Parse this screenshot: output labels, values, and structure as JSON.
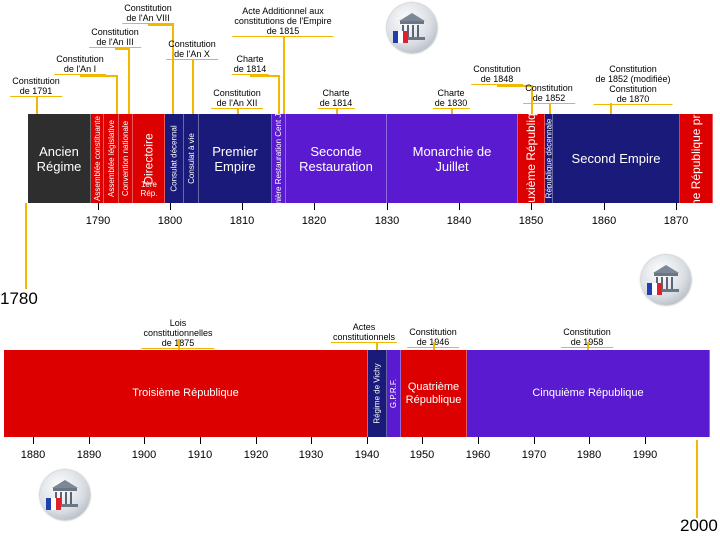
{
  "colors": {
    "ancien": "#2e2e2e",
    "red": "#dd0000",
    "navy": "#1a1a7a",
    "purple": "#5a1ad0",
    "darkred": "#aa0000",
    "annotation_line": "#f2b800"
  },
  "top": {
    "segments": [
      {
        "name": "seg-ancien-regime",
        "label": "Ancien\nRégime",
        "color": "#2e2e2e",
        "vertical": false
      },
      {
        "name": "seg-assemblee-constituante",
        "label": "Assemblée constituante",
        "color": "#dd0000",
        "vertical": true
      },
      {
        "name": "seg-assemblee-legislative",
        "label": "Assemblée législative",
        "color": "#dd0000",
        "vertical": true
      },
      {
        "name": "seg-convention",
        "label": "Convention nationale",
        "color": "#dd0000",
        "vertical": true
      },
      {
        "name": "seg-directoire",
        "label": "Directoire",
        "color": "#dd0000",
        "vertical": true
      },
      {
        "name": "seg-consulat-decennal",
        "label": "Consulat décennal",
        "color": "#1a1a7a",
        "vertical": true
      },
      {
        "name": "seg-consulat-vie",
        "label": "Consulat à vie",
        "color": "#1a1a7a",
        "vertical": true
      },
      {
        "name": "seg-premier-empire",
        "label": "Premier\nEmpire",
        "color": "#1a1a7a",
        "vertical": false
      },
      {
        "name": "seg-premiere-restauration",
        "label": "Première Restauration Cent Jours",
        "color": "#5a1ad0",
        "vertical": true
      },
      {
        "name": "seg-seconde-restauration",
        "label": "Seconde\nRestauration",
        "color": "#5a1ad0",
        "vertical": false
      },
      {
        "name": "seg-monarchie-juillet",
        "label": "Monarchie de\nJuillet",
        "color": "#5a1ad0",
        "vertical": false
      },
      {
        "name": "seg-deuxieme-republique",
        "label": "Deuxième République",
        "color": "#dd0000",
        "vertical": true
      },
      {
        "name": "seg-republique-decennale",
        "label": "République décennale",
        "color": "#1a1a7a",
        "vertical": true
      },
      {
        "name": "seg-second-empire",
        "label": "Second Empire",
        "color": "#1a1a7a",
        "vertical": false
      },
      {
        "name": "seg-troisieme-provisoire",
        "label": "Troisième République provisoire",
        "color": "#dd0000",
        "vertical": true
      }
    ],
    "sub_label": "1ère\nRép.",
    "ticks": [
      "1790",
      "1800",
      "1810",
      "1820",
      "1830",
      "1840",
      "1850",
      "1860",
      "1870"
    ],
    "annotations": [
      {
        "name": "anno-constitution-1791",
        "text": "Constitution\nde 1791"
      },
      {
        "name": "anno-constitution-an-i",
        "text": "Constitution\nde l'An I"
      },
      {
        "name": "anno-constitution-an-iii",
        "text": "Constitution\nde l'An III"
      },
      {
        "name": "anno-constitution-an-viii",
        "text": "Constitution\nde l'An VIII"
      },
      {
        "name": "anno-constitution-an-x",
        "text": "Constitution\nde l'An X"
      },
      {
        "name": "anno-constitution-an-xii",
        "text": "Constitution\nde l'An XII"
      },
      {
        "name": "anno-charte-1814",
        "text": "Charte\nde 1814"
      },
      {
        "name": "anno-acte-additionnel-1815",
        "text": "Acte Additionnel aux\nconstitutions de l'Empire\nde 1815"
      },
      {
        "name": "anno-charte-1814-b",
        "text": "Charte\nde 1814"
      },
      {
        "name": "anno-charte-1830",
        "text": "Charte\nde 1830"
      },
      {
        "name": "anno-constitution-1848",
        "text": "Constitution\nde 1848"
      },
      {
        "name": "anno-constitution-1852",
        "text": "Constitution\nde 1852"
      },
      {
        "name": "anno-constitution-1852-1870",
        "text": "Constitution\nde 1852 (modifiée)\nConstitution\nde 1870"
      }
    ]
  },
  "bottom": {
    "segments": [
      {
        "name": "seg-troisieme-republique",
        "label": "Troisième République",
        "color": "#dd0000",
        "vertical": false
      },
      {
        "name": "seg-regime-vichy",
        "label": "Régime de Vichy",
        "color": "#1a1a7a",
        "vertical": true
      },
      {
        "name": "seg-gprf",
        "label": "G.P.R.F.",
        "color": "#5a1ad0",
        "vertical": true
      },
      {
        "name": "seg-quatrieme-republique",
        "label": "Quatrième\nRépublique",
        "color": "#dd0000",
        "vertical": false
      },
      {
        "name": "seg-cinquieme-republique",
        "label": "Cinquième République",
        "color": "#5a1ad0",
        "vertical": false
      }
    ],
    "ticks": [
      "1880",
      "1890",
      "1900",
      "1910",
      "1920",
      "1930",
      "1940",
      "1950",
      "1960",
      "1970",
      "1980",
      "1990"
    ],
    "annotations": [
      {
        "name": "anno-lois-1875",
        "text": "Lois\nconstitutionnelles\nde 1875"
      },
      {
        "name": "anno-actes-constitutionnels",
        "text": "Actes\nconstitutionnels"
      },
      {
        "name": "anno-constitution-1946",
        "text": "Constitution\nde 1946"
      },
      {
        "name": "anno-constitution-1958",
        "text": "Constitution\nde 1958"
      }
    ]
  },
  "years": {
    "start": "1780",
    "end": "2000"
  },
  "icons": [
    "assemblee-nationale-logo-icon",
    "assemblee-nationale-logo-icon",
    "assemblee-nationale-logo-icon"
  ]
}
